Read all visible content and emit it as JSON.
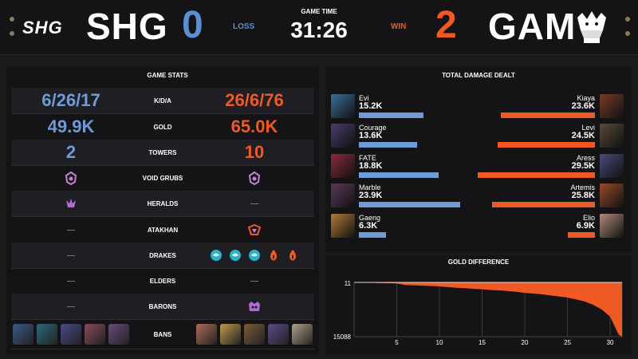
{
  "header": {
    "blue_logo": "SHG",
    "blue_team": "SHG",
    "blue_score": "0",
    "blue_result": "LOSS",
    "game_time_label": "GAME TIME",
    "game_time": "31:26",
    "red_result": "WIN",
    "red_score": "2",
    "red_team": "GAM"
  },
  "game_stats": {
    "title": "GAME STATS",
    "rows": [
      {
        "label": "K/D/A",
        "blue": "6/26/17",
        "red": "26/6/76"
      },
      {
        "label": "GOLD",
        "blue": "49.9K",
        "red": "65.0K"
      },
      {
        "label": "TOWERS",
        "blue": "2",
        "red": "10"
      },
      {
        "label": "VOID GRUBS",
        "blue_icon": "void-grub-icon",
        "red_icon": "void-grub-icon"
      },
      {
        "label": "HERALDS",
        "blue_icon": "herald-icon"
      },
      {
        "label": "ATAKHAN",
        "red_icon": "atakhan-icon"
      },
      {
        "label": "DRAKES",
        "red_icons": [
          "ocean-drake-icon",
          "ocean-drake-icon",
          "ocean-drake-icon",
          "infernal-drake-icon",
          "infernal-drake-icon"
        ]
      },
      {
        "label": "ELDERS"
      },
      {
        "label": "BARONS",
        "red_icon": "baron-icon"
      },
      {
        "label": "BANS"
      }
    ]
  },
  "damage": {
    "title": "TOTAL DAMAGE DEALT",
    "blue": [
      {
        "name": "Evi",
        "value": "15.2K",
        "dmg": 15.2,
        "color": "#3a6e9a"
      },
      {
        "name": "Courage",
        "value": "13.6K",
        "dmg": 13.6,
        "color": "#4a3d6b"
      },
      {
        "name": "FATE",
        "value": "18.8K",
        "dmg": 18.8,
        "color": "#8a2b3a"
      },
      {
        "name": "Marble",
        "value": "23.9K",
        "dmg": 23.9,
        "color": "#5a3a5a"
      },
      {
        "name": "Gaeng",
        "value": "6.3K",
        "dmg": 6.3,
        "color": "#b07a3a"
      }
    ],
    "red": [
      {
        "name": "Kiaya",
        "value": "23.6K",
        "dmg": 23.6,
        "color": "#7a3a2a"
      },
      {
        "name": "Levi",
        "value": "24.5K",
        "dmg": 24.5,
        "color": "#5a4a3a"
      },
      {
        "name": "Aress",
        "value": "29.5K",
        "dmg": 29.5,
        "color": "#4a4a7a"
      },
      {
        "name": "Artemis",
        "value": "25.8K",
        "dmg": 25.8,
        "color": "#9a4a2a"
      },
      {
        "name": "Elio",
        "value": "6.9K",
        "dmg": 6.9,
        "color": "#b08a7a"
      }
    ]
  },
  "colors": {
    "blue": "#6f9bd6",
    "orange": "#ef5a24"
  },
  "chart_data": {
    "type": "area",
    "title": "GOLD DIFFERENCE",
    "xlabel": "",
    "ylabel": "",
    "x_ticks": [
      5,
      10,
      15,
      20,
      25,
      30
    ],
    "y_top_label": "11",
    "y_bottom_label": "15088",
    "ylim": [
      -15088,
      11
    ],
    "xlim": [
      0,
      31.4
    ],
    "x": [
      0,
      1,
      2,
      3,
      4,
      5,
      6,
      7,
      8,
      9,
      10,
      11,
      12,
      13,
      14,
      15,
      16,
      17,
      18,
      19,
      20,
      21,
      22,
      23,
      24,
      25,
      26,
      27,
      28,
      29,
      30,
      30.5,
      31,
      31.4
    ],
    "y": [
      0,
      -50,
      -100,
      -150,
      -200,
      -300,
      -700,
      -800,
      -900,
      -1000,
      -1100,
      -1300,
      -1500,
      -1600,
      -1800,
      -1900,
      -2100,
      -2200,
      -2400,
      -2600,
      -2900,
      -3100,
      -3300,
      -3600,
      -3900,
      -4200,
      -4700,
      -5300,
      -6200,
      -7500,
      -9500,
      -12000,
      -14500,
      -15088
    ],
    "grid": true,
    "legend": "none"
  }
}
